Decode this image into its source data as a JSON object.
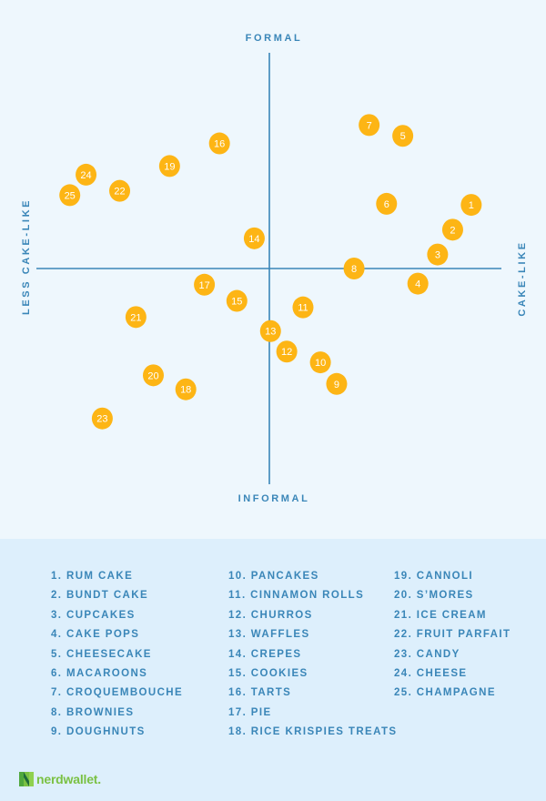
{
  "chart_data": {
    "type": "scatter",
    "title": "",
    "axis_labels": {
      "top": "FORMAL",
      "bottom": "INFORMAL",
      "left": "LESS CAKE-LIKE",
      "right": "CAKE-LIKE"
    },
    "xlabel": "CAKE-LIKE",
    "ylabel": "FORMAL",
    "xlim": [
      -10,
      10
    ],
    "ylim": [
      -10,
      10
    ],
    "grid": false,
    "point_color": "#fdb515",
    "axis_color": "#3a86b8",
    "points": [
      {
        "id": "1",
        "label": "RUM CAKE",
        "x": 8.7,
        "y": 2.95
      },
      {
        "id": "2",
        "label": "BUNDT CAKE",
        "x": 7.9,
        "y": 1.8
      },
      {
        "id": "3",
        "label": "CUPCAKES",
        "x": 7.25,
        "y": 0.65
      },
      {
        "id": "4",
        "label": "CAKE POPS",
        "x": 6.4,
        "y": -0.7
      },
      {
        "id": "5",
        "label": "CHEESECAKE",
        "x": 5.75,
        "y": 6.15
      },
      {
        "id": "6",
        "label": "MACAROONS",
        "x": 5.05,
        "y": 3.0
      },
      {
        "id": "7",
        "label": "CROQUEMBOUCHE",
        "x": 4.3,
        "y": 6.65
      },
      {
        "id": "8",
        "label": "BROWNIES",
        "x": 3.65,
        "y": 0.0
      },
      {
        "id": "9",
        "label": "DOUGHNUTS",
        "x": 2.9,
        "y": -5.35
      },
      {
        "id": "10",
        "label": "PANCAKES",
        "x": 2.2,
        "y": -4.35
      },
      {
        "id": "11",
        "label": "CINNAMON ROLLS",
        "x": 1.45,
        "y": -1.8
      },
      {
        "id": "12",
        "label": "CHURROS",
        "x": 0.75,
        "y": -3.85
      },
      {
        "id": "13",
        "label": "WAFFLES",
        "x": 0.05,
        "y": -2.9
      },
      {
        "id": "14",
        "label": "CREPES",
        "x": -0.65,
        "y": 1.4
      },
      {
        "id": "15",
        "label": "COOKIES",
        "x": -1.4,
        "y": -1.5
      },
      {
        "id": "16",
        "label": "TARTS",
        "x": -2.15,
        "y": 5.8
      },
      {
        "id": "17",
        "label": "PIE",
        "x": -2.8,
        "y": -0.75
      },
      {
        "id": "18",
        "label": "RICE KRISPIES TREATS",
        "x": -3.6,
        "y": -5.6
      },
      {
        "id": "19",
        "label": "CANNOLI",
        "x": -4.3,
        "y": 4.75
      },
      {
        "id": "20",
        "label": "S’MORES",
        "x": -5.0,
        "y": -4.95
      },
      {
        "id": "21",
        "label": "ICE CREAM",
        "x": -5.75,
        "y": -2.25
      },
      {
        "id": "22",
        "label": "FRUIT PARFAIT",
        "x": -6.45,
        "y": 3.6
      },
      {
        "id": "23",
        "label": "CANDY",
        "x": -7.2,
        "y": -6.95
      },
      {
        "id": "24",
        "label": "CHEESE",
        "x": -7.9,
        "y": 4.35
      },
      {
        "id": "25",
        "label": "CHAMPAGNE",
        "x": -8.6,
        "y": 3.4
      }
    ]
  },
  "legend": {
    "columns": [
      [
        "1. RUM CAKE",
        "2. BUNDT CAKE",
        "3. CUPCAKES",
        "4. CAKE POPS",
        "5. CHEESECAKE",
        "6. MACAROONS",
        "7. CROQUEMBOUCHE",
        "8. BROWNIES",
        "9. DOUGHNUTS"
      ],
      [
        "10. PANCAKES",
        "11. CINNAMON ROLLS",
        "12. CHURROS",
        "13. WAFFLES",
        "14. CREPES",
        "15. COOKIES",
        "16. TARTS",
        "17. PIE",
        "18. RICE KRISPIES TREATS"
      ],
      [
        "19. CANNOLI",
        "20. S’MORES",
        "21. ICE CREAM",
        "22. FRUIT PARFAIT",
        "23. CANDY",
        "24. CHEESE",
        "25. CHAMPAGNE"
      ]
    ]
  },
  "brand": {
    "name": "nerdwallet.",
    "logo_icon": "nerdwallet-n-logo",
    "color": "#7ac143"
  }
}
